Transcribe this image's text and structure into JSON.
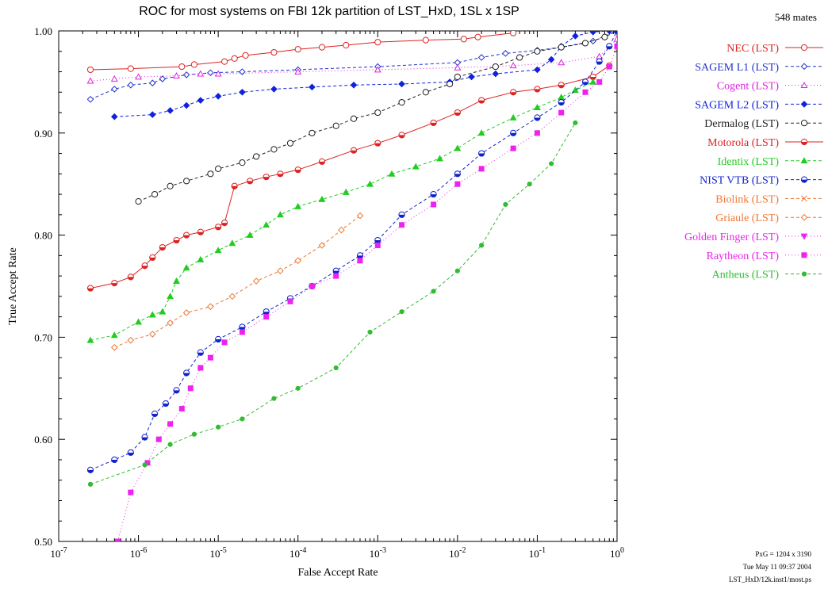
{
  "chart_data": {
    "type": "line",
    "title": "ROC for most systems on FBI 12k partition of LST_HxD, 1SL x 1SP",
    "xlabel": "False Accept Rate",
    "ylabel": "True Accept Rate",
    "xscale": "log",
    "xlim": [
      1e-07,
      1
    ],
    "ylim": [
      0.5,
      1.0
    ],
    "x_ticks": [
      {
        "value": 1e-07,
        "base": "10",
        "exp": "-7"
      },
      {
        "value": 1e-06,
        "base": "10",
        "exp": "-6"
      },
      {
        "value": 1e-05,
        "base": "10",
        "exp": "-5"
      },
      {
        "value": 0.0001,
        "base": "10",
        "exp": "-4"
      },
      {
        "value": 0.001,
        "base": "10",
        "exp": "-3"
      },
      {
        "value": 0.01,
        "base": "10",
        "exp": "-2"
      },
      {
        "value": 0.1,
        "base": "10",
        "exp": "-1"
      },
      {
        "value": 1,
        "base": "10",
        "exp": "0"
      }
    ],
    "y_ticks": [
      "0.50",
      "0.60",
      "0.70",
      "0.80",
      "0.90",
      "1.00"
    ],
    "grid": false,
    "legend_position": "right",
    "count_label": "548 mates",
    "footnote": [
      "PxG = 1204 x 3190",
      "Tue May 11 09:37 2004",
      "LST_HxD/12k.inst1/most.ps"
    ],
    "series": [
      {
        "name": "NEC (LST)",
        "color": "#dd2222",
        "marker": "circle-open",
        "dash": "solid",
        "x": [
          2.5e-07,
          8e-07,
          3.5e-06,
          5e-06,
          1.2e-05,
          1.6e-05,
          2.2e-05,
          5e-05,
          0.0001,
          0.0002,
          0.0004,
          0.001,
          0.004,
          0.012,
          0.018,
          0.05
        ],
        "y": [
          0.962,
          0.963,
          0.965,
          0.967,
          0.97,
          0.973,
          0.976,
          0.979,
          0.982,
          0.984,
          0.986,
          0.989,
          0.991,
          0.992,
          0.994,
          0.998
        ]
      },
      {
        "name": "SAGEM L1 (LST)",
        "color": "#2233cc",
        "marker": "diamond-open",
        "dash": "dash",
        "x": [
          2.5e-07,
          5e-07,
          8e-07,
          1.5e-06,
          2e-06,
          4e-06,
          8e-06,
          2e-05,
          0.0001,
          0.001,
          0.01,
          0.02,
          0.04,
          0.1,
          0.2,
          0.5,
          1.0
        ],
        "y": [
          0.933,
          0.943,
          0.947,
          0.949,
          0.953,
          0.957,
          0.959,
          0.96,
          0.962,
          0.965,
          0.969,
          0.974,
          0.978,
          0.981,
          0.984,
          0.99,
          1.0
        ]
      },
      {
        "name": "Cogent (LST)",
        "color": "#dd22dd",
        "marker": "triangle-open",
        "dash": "dot",
        "x": [
          2.5e-07,
          5e-07,
          1e-06,
          3e-06,
          6e-06,
          1e-05,
          0.0001,
          0.001,
          0.01,
          0.05,
          0.2,
          0.6,
          1.0
        ],
        "y": [
          0.951,
          0.953,
          0.955,
          0.956,
          0.958,
          0.958,
          0.96,
          0.962,
          0.964,
          0.966,
          0.969,
          0.975,
          0.992
        ]
      },
      {
        "name": "SAGEM L2 (LST)",
        "color": "#1122dd",
        "marker": "diamond-filled",
        "dash": "dash",
        "x": [
          5e-07,
          1.5e-06,
          2.5e-06,
          4e-06,
          6e-06,
          1e-05,
          2e-05,
          5e-05,
          0.00015,
          0.0005,
          0.002,
          0.008,
          0.015,
          0.03,
          0.1,
          0.15,
          0.2,
          0.3,
          0.5,
          0.8,
          1.0
        ],
        "y": [
          0.916,
          0.918,
          0.922,
          0.927,
          0.932,
          0.936,
          0.94,
          0.943,
          0.945,
          0.947,
          0.948,
          0.95,
          0.955,
          0.958,
          0.962,
          0.972,
          0.985,
          0.995,
          0.999,
          1.0,
          1.0
        ]
      },
      {
        "name": "Dermalog (LST)",
        "color": "#222222",
        "marker": "circle-open",
        "dash": "dash",
        "x": [
          1e-06,
          1.6e-06,
          2.5e-06,
          4e-06,
          8e-06,
          1e-05,
          2e-05,
          3e-05,
          5e-05,
          8e-05,
          0.00015,
          0.0003,
          0.0005,
          0.001,
          0.002,
          0.004,
          0.008,
          0.01,
          0.03,
          0.06,
          0.1,
          0.2,
          0.4,
          0.7,
          1.0
        ],
        "y": [
          0.833,
          0.84,
          0.848,
          0.853,
          0.86,
          0.865,
          0.871,
          0.877,
          0.884,
          0.89,
          0.9,
          0.907,
          0.914,
          0.92,
          0.93,
          0.94,
          0.948,
          0.955,
          0.965,
          0.974,
          0.98,
          0.984,
          0.988,
          0.994,
          1.0
        ]
      },
      {
        "name": "Motorola (LST)",
        "color": "#dd2222",
        "marker": "circle-half",
        "dash": "solid",
        "x": [
          2.5e-07,
          5e-07,
          8e-07,
          1.2e-06,
          1.5e-06,
          2e-06,
          3e-06,
          4e-06,
          6e-06,
          1e-05,
          1.2e-05,
          1.6e-05,
          2.5e-05,
          4e-05,
          6e-05,
          0.0001,
          0.0002,
          0.0005,
          0.001,
          0.002,
          0.005,
          0.01,
          0.02,
          0.05,
          0.1,
          0.2,
          0.5,
          0.8
        ],
        "y": [
          0.748,
          0.753,
          0.759,
          0.77,
          0.778,
          0.788,
          0.795,
          0.8,
          0.803,
          0.808,
          0.812,
          0.848,
          0.853,
          0.857,
          0.86,
          0.864,
          0.872,
          0.883,
          0.89,
          0.898,
          0.91,
          0.92,
          0.932,
          0.94,
          0.943,
          0.947,
          0.955,
          0.966
        ]
      },
      {
        "name": "Identix (LST)",
        "color": "#22cc22",
        "marker": "triangle-filled",
        "dash": "dash",
        "x": [
          2.5e-07,
          5e-07,
          1e-06,
          1.5e-06,
          2e-06,
          2.5e-06,
          3e-06,
          4e-06,
          6e-06,
          1e-05,
          1.5e-05,
          2.5e-05,
          4e-05,
          6e-05,
          0.0001,
          0.0002,
          0.0004,
          0.0008,
          0.0015,
          0.003,
          0.006,
          0.01,
          0.02,
          0.05,
          0.1,
          0.2,
          0.3,
          0.5
        ],
        "y": [
          0.697,
          0.702,
          0.715,
          0.722,
          0.725,
          0.74,
          0.755,
          0.768,
          0.776,
          0.785,
          0.792,
          0.8,
          0.81,
          0.82,
          0.828,
          0.835,
          0.842,
          0.85,
          0.86,
          0.867,
          0.875,
          0.885,
          0.9,
          0.915,
          0.925,
          0.935,
          0.942,
          0.95
        ]
      },
      {
        "name": "NIST VTB (LST)",
        "color": "#1122cc",
        "marker": "circle-half",
        "dash": "dash",
        "x": [
          2.5e-07,
          5e-07,
          8e-07,
          1.2e-06,
          1.6e-06,
          2.2e-06,
          3e-06,
          4e-06,
          6e-06,
          1e-05,
          2e-05,
          4e-05,
          8e-05,
          0.00015,
          0.0003,
          0.0006,
          0.001,
          0.002,
          0.005,
          0.01,
          0.02,
          0.05,
          0.1,
          0.2,
          0.4,
          0.6,
          0.8,
          1.0
        ],
        "y": [
          0.57,
          0.58,
          0.587,
          0.602,
          0.625,
          0.635,
          0.648,
          0.665,
          0.685,
          0.698,
          0.71,
          0.725,
          0.738,
          0.75,
          0.765,
          0.78,
          0.795,
          0.82,
          0.84,
          0.86,
          0.88,
          0.9,
          0.915,
          0.93,
          0.95,
          0.97,
          0.985,
          1.0
        ]
      },
      {
        "name": "Biolink (LST)",
        "color": "#ee7733",
        "marker": "cross",
        "dash": "dash",
        "x": [],
        "y": []
      },
      {
        "name": "Griaule (LST)",
        "color": "#ee7733",
        "marker": "diamond-open",
        "dash": "dash",
        "x": [
          5e-07,
          8e-07,
          1.5e-06,
          2.5e-06,
          4e-06,
          8e-06,
          1.5e-05,
          3e-05,
          6e-05,
          0.0001,
          0.0002,
          0.00035,
          0.0006
        ],
        "y": [
          0.69,
          0.697,
          0.703,
          0.714,
          0.724,
          0.73,
          0.74,
          0.755,
          0.765,
          0.775,
          0.79,
          0.805,
          0.819
        ]
      },
      {
        "name": "Golden Finger (LST)",
        "color": "#ee22ee",
        "marker": "triangle-down-filled",
        "dash": "dot",
        "x": [],
        "y": []
      },
      {
        "name": "Raytheon (LST)",
        "color": "#ee22ee",
        "marker": "square-filled",
        "dash": "dot",
        "x": [
          5.5e-07,
          8e-07,
          1.3e-06,
          1.8e-06,
          2.5e-06,
          3.5e-06,
          4.5e-06,
          6e-06,
          8e-06,
          1.2e-05,
          2e-05,
          4e-05,
          8e-05,
          0.00015,
          0.0003,
          0.0006,
          0.001,
          0.002,
          0.005,
          0.01,
          0.02,
          0.05,
          0.1,
          0.2,
          0.4,
          0.6,
          0.8,
          1.0
        ],
        "y": [
          0.5,
          0.548,
          0.577,
          0.6,
          0.615,
          0.63,
          0.65,
          0.67,
          0.68,
          0.695,
          0.705,
          0.72,
          0.735,
          0.75,
          0.76,
          0.775,
          0.79,
          0.81,
          0.83,
          0.85,
          0.865,
          0.885,
          0.9,
          0.92,
          0.94,
          0.95,
          0.965,
          0.985
        ]
      },
      {
        "name": "Antheus (LST)",
        "color": "#33bb33",
        "marker": "circle-filled",
        "dash": "dash",
        "x": [
          2.5e-07,
          1.2e-06,
          2.5e-06,
          5e-06,
          1e-05,
          2e-05,
          5e-05,
          0.0001,
          0.0003,
          0.0008,
          0.002,
          0.005,
          0.01,
          0.02,
          0.04,
          0.08,
          0.15,
          0.3
        ],
        "y": [
          0.556,
          0.575,
          0.595,
          0.605,
          0.612,
          0.62,
          0.64,
          0.65,
          0.67,
          0.705,
          0.725,
          0.745,
          0.765,
          0.79,
          0.83,
          0.85,
          0.87,
          0.91
        ]
      }
    ]
  }
}
